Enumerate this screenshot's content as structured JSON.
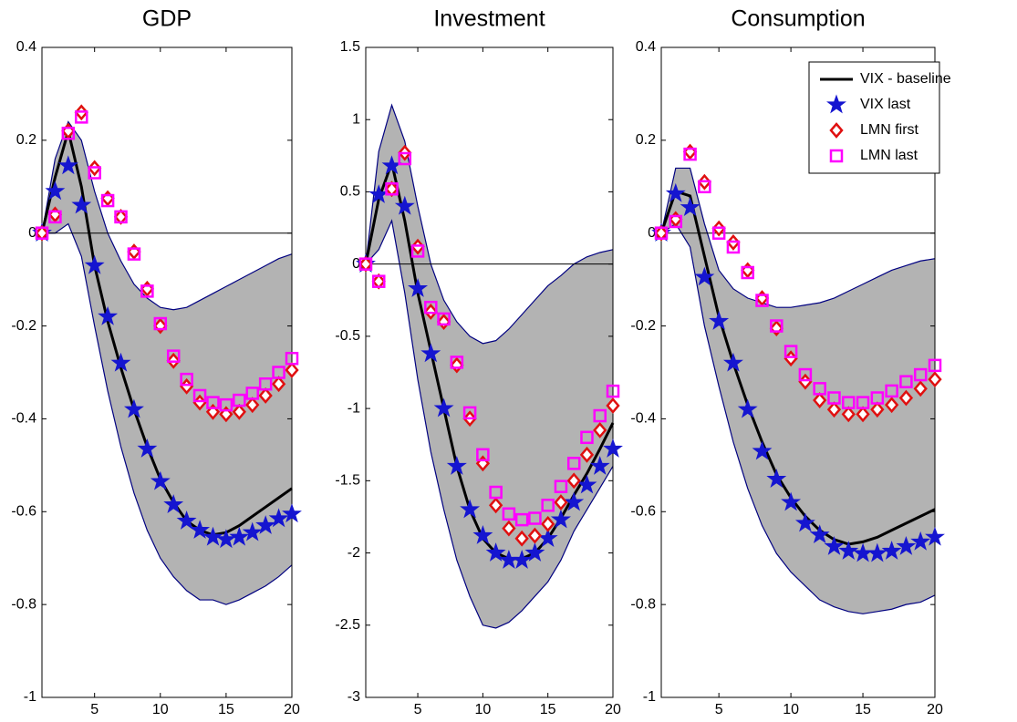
{
  "chart_data": [
    {
      "type": "line",
      "title": "GDP",
      "x": [
        1,
        2,
        3,
        4,
        5,
        6,
        7,
        8,
        9,
        10,
        11,
        12,
        13,
        14,
        15,
        16,
        17,
        18,
        19,
        20
      ],
      "xlim": [
        1,
        20
      ],
      "xticks": [
        5,
        10,
        15,
        20
      ],
      "ylim": [
        -1,
        0.4
      ],
      "yticks": [
        0.4,
        0.2,
        0,
        -0.2,
        -0.4,
        -0.6,
        -0.8,
        -1
      ],
      "zero_line": true,
      "band": {
        "color": "#b3b3b3",
        "edge_color": "#000080",
        "upper": [
          0,
          0.16,
          0.24,
          0.2,
          0.09,
          0.0,
          -0.06,
          -0.11,
          -0.14,
          -0.16,
          -0.165,
          -0.16,
          -0.145,
          -0.13,
          -0.115,
          -0.1,
          -0.085,
          -0.07,
          -0.055,
          -0.045
        ],
        "lower": [
          0,
          0.0,
          0.02,
          -0.05,
          -0.2,
          -0.34,
          -0.46,
          -0.56,
          -0.64,
          -0.7,
          -0.74,
          -0.77,
          -0.79,
          -0.79,
          -0.8,
          -0.79,
          -0.775,
          -0.76,
          -0.74,
          -0.715
        ]
      },
      "series": [
        {
          "name": "VIX - baseline",
          "color": "#000000",
          "marker": "none",
          "values": [
            0,
            0.12,
            0.22,
            0.1,
            -0.07,
            -0.19,
            -0.29,
            -0.38,
            -0.46,
            -0.53,
            -0.58,
            -0.62,
            -0.64,
            -0.65,
            -0.645,
            -0.63,
            -0.61,
            -0.59,
            -0.57,
            -0.55
          ]
        },
        {
          "name": "VIX last",
          "color": "#1515d0",
          "marker": "star",
          "values": [
            0,
            0.09,
            0.145,
            0.06,
            -0.07,
            -0.18,
            -0.28,
            -0.38,
            -0.465,
            -0.535,
            -0.585,
            -0.62,
            -0.64,
            -0.655,
            -0.66,
            -0.655,
            -0.645,
            -0.63,
            -0.615,
            -0.605
          ]
        },
        {
          "name": "LMN first",
          "color": "#e01010",
          "marker": "diamond",
          "values": [
            0,
            0.04,
            0.22,
            0.26,
            0.14,
            0.075,
            0.035,
            -0.04,
            -0.12,
            -0.2,
            -0.275,
            -0.33,
            -0.365,
            -0.385,
            -0.39,
            -0.385,
            -0.37,
            -0.35,
            -0.325,
            -0.295
          ]
        },
        {
          "name": "LMN last",
          "color": "#ff00ff",
          "marker": "square",
          "values": [
            0,
            0.035,
            0.215,
            0.25,
            0.13,
            0.07,
            0.035,
            -0.045,
            -0.125,
            -0.195,
            -0.265,
            -0.315,
            -0.35,
            -0.365,
            -0.37,
            -0.36,
            -0.345,
            -0.325,
            -0.3,
            -0.27
          ]
        }
      ]
    },
    {
      "type": "line",
      "title": "Investment",
      "x": [
        1,
        2,
        3,
        4,
        5,
        6,
        7,
        8,
        9,
        10,
        11,
        12,
        13,
        14,
        15,
        16,
        17,
        18,
        19,
        20
      ],
      "xlim": [
        1,
        20
      ],
      "xticks": [
        5,
        10,
        15,
        20
      ],
      "ylim": [
        -3,
        1.5
      ],
      "yticks": [
        1.5,
        1,
        0.5,
        0,
        -0.5,
        -1,
        -1.5,
        -2,
        -2.5,
        -3
      ],
      "zero_line": true,
      "band": {
        "color": "#b3b3b3",
        "edge_color": "#000080",
        "upper": [
          0,
          0.78,
          1.1,
          0.85,
          0.4,
          0.0,
          -0.25,
          -0.4,
          -0.5,
          -0.55,
          -0.53,
          -0.45,
          -0.35,
          -0.25,
          -0.15,
          -0.08,
          0.0,
          0.05,
          0.08,
          0.1
        ],
        "lower": [
          0,
          0.1,
          0.3,
          -0.2,
          -0.8,
          -1.3,
          -1.7,
          -2.05,
          -2.3,
          -2.5,
          -2.52,
          -2.48,
          -2.4,
          -2.3,
          -2.2,
          -2.05,
          -1.85,
          -1.7,
          -1.55,
          -1.4
        ]
      },
      "series": [
        {
          "name": "VIX - baseline",
          "color": "#000000",
          "marker": "none",
          "values": [
            0,
            0.45,
            0.7,
            0.3,
            -0.2,
            -0.6,
            -1.0,
            -1.4,
            -1.7,
            -1.9,
            -2.0,
            -2.04,
            -2.04,
            -2.0,
            -1.9,
            -1.76,
            -1.6,
            -1.45,
            -1.28,
            -1.1
          ]
        },
        {
          "name": "VIX last",
          "color": "#1515d0",
          "marker": "star",
          "values": [
            0,
            0.48,
            0.68,
            0.4,
            -0.17,
            -0.62,
            -1.0,
            -1.4,
            -1.7,
            -1.88,
            -2.0,
            -2.05,
            -2.05,
            -2.0,
            -1.9,
            -1.77,
            -1.65,
            -1.53,
            -1.4,
            -1.28
          ]
        },
        {
          "name": "LMN first",
          "color": "#e01010",
          "marker": "diamond",
          "values": [
            0,
            -0.12,
            0.52,
            0.77,
            0.12,
            -0.33,
            -0.4,
            -0.7,
            -1.07,
            -1.38,
            -1.67,
            -1.83,
            -1.9,
            -1.88,
            -1.8,
            -1.65,
            -1.5,
            -1.32,
            -1.15,
            -0.98
          ]
        },
        {
          "name": "LMN last",
          "color": "#ff00ff",
          "marker": "square",
          "values": [
            0,
            -0.12,
            0.52,
            0.73,
            0.09,
            -0.3,
            -0.38,
            -0.68,
            -1.03,
            -1.32,
            -1.58,
            -1.73,
            -1.77,
            -1.76,
            -1.67,
            -1.54,
            -1.38,
            -1.2,
            -1.05,
            -0.88
          ]
        }
      ]
    },
    {
      "type": "line",
      "title": "Consumption",
      "x": [
        1,
        2,
        3,
        4,
        5,
        6,
        7,
        8,
        9,
        10,
        11,
        12,
        13,
        14,
        15,
        16,
        17,
        18,
        19,
        20
      ],
      "xlim": [
        1,
        20
      ],
      "xticks": [
        5,
        10,
        15,
        20
      ],
      "ylim": [
        -1,
        0.4
      ],
      "yticks": [
        0.4,
        0.2,
        0,
        -0.2,
        -0.4,
        -0.6,
        -0.8,
        -1
      ],
      "zero_line": true,
      "legend": "upper right",
      "band": {
        "color": "#b3b3b3",
        "edge_color": "#000080",
        "upper": [
          0,
          0.14,
          0.14,
          0.02,
          -0.08,
          -0.12,
          -0.14,
          -0.15,
          -0.16,
          -0.16,
          -0.155,
          -0.15,
          -0.14,
          -0.125,
          -0.11,
          -0.095,
          -0.08,
          -0.07,
          -0.06,
          -0.055
        ],
        "lower": [
          0,
          0.02,
          -0.03,
          -0.2,
          -0.33,
          -0.45,
          -0.55,
          -0.63,
          -0.69,
          -0.73,
          -0.76,
          -0.79,
          -0.805,
          -0.815,
          -0.82,
          -0.815,
          -0.81,
          -0.8,
          -0.795,
          -0.78
        ]
      },
      "series": [
        {
          "name": "VIX - baseline",
          "color": "#000000",
          "marker": "none",
          "values": [
            0,
            0.09,
            0.08,
            -0.05,
            -0.18,
            -0.28,
            -0.37,
            -0.45,
            -0.52,
            -0.57,
            -0.61,
            -0.64,
            -0.66,
            -0.67,
            -0.665,
            -0.655,
            -0.64,
            -0.625,
            -0.61,
            -0.595
          ]
        },
        {
          "name": "VIX last",
          "color": "#1515d0",
          "marker": "star",
          "values": [
            0,
            0.085,
            0.055,
            -0.095,
            -0.19,
            -0.28,
            -0.38,
            -0.47,
            -0.53,
            -0.58,
            -0.625,
            -0.65,
            -0.675,
            -0.685,
            -0.69,
            -0.69,
            -0.685,
            -0.675,
            -0.665,
            -0.655
          ]
        },
        {
          "name": "LMN first",
          "color": "#e01010",
          "marker": "diamond",
          "values": [
            0,
            0.03,
            0.175,
            0.11,
            0.01,
            -0.02,
            -0.08,
            -0.14,
            -0.205,
            -0.27,
            -0.32,
            -0.36,
            -0.38,
            -0.39,
            -0.39,
            -0.38,
            -0.37,
            -0.355,
            -0.335,
            -0.315
          ]
        },
        {
          "name": "LMN last",
          "color": "#ff00ff",
          "marker": "square",
          "values": [
            0,
            0.025,
            0.17,
            0.1,
            0.0,
            -0.03,
            -0.085,
            -0.145,
            -0.2,
            -0.255,
            -0.305,
            -0.335,
            -0.355,
            -0.365,
            -0.365,
            -0.355,
            -0.34,
            -0.32,
            -0.305,
            -0.285
          ]
        }
      ]
    }
  ]
}
